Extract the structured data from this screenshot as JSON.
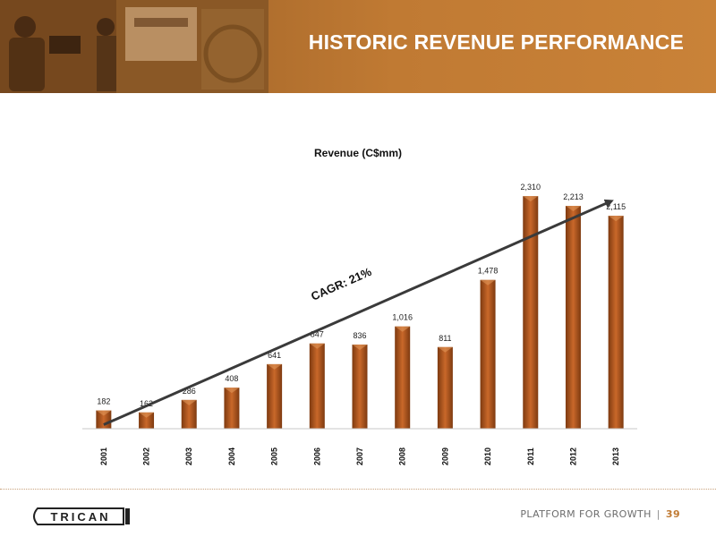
{
  "header": {
    "title": "HISTORIC REVENUE PERFORMANCE"
  },
  "footer": {
    "tagline": "PLATFORM FOR GROWTH",
    "separator": "|",
    "page_number": "39",
    "logo_text": "TRICAN"
  },
  "colors": {
    "banner": "#b5722f",
    "bar": "#b35a1f",
    "arrow": "#3a3a3a"
  },
  "chart_data": {
    "type": "bar",
    "title": "Revenue (C$mm)",
    "xlabel": "",
    "ylabel": "",
    "categories": [
      "2001",
      "2002",
      "2003",
      "2004",
      "2005",
      "2006",
      "2007",
      "2008",
      "2009",
      "2010",
      "2011",
      "2012",
      "2013"
    ],
    "values": [
      182,
      162,
      286,
      408,
      641,
      847,
      836,
      1016,
      811,
      1478,
      2310,
      2213,
      2115
    ],
    "value_labels": [
      "182",
      "162",
      "286",
      "408",
      "641",
      "847",
      "836",
      "1,016",
      "811",
      "1,478",
      "2,310",
      "2,213",
      "2,115"
    ],
    "ylim": [
      0,
      2400
    ],
    "grid": false,
    "legend": "none",
    "annotation": {
      "text": "CAGR: 21%",
      "type": "trend-arrow",
      "from_category": "2001",
      "from_value": 182,
      "to_category": "2013",
      "to_value": 2115
    }
  }
}
